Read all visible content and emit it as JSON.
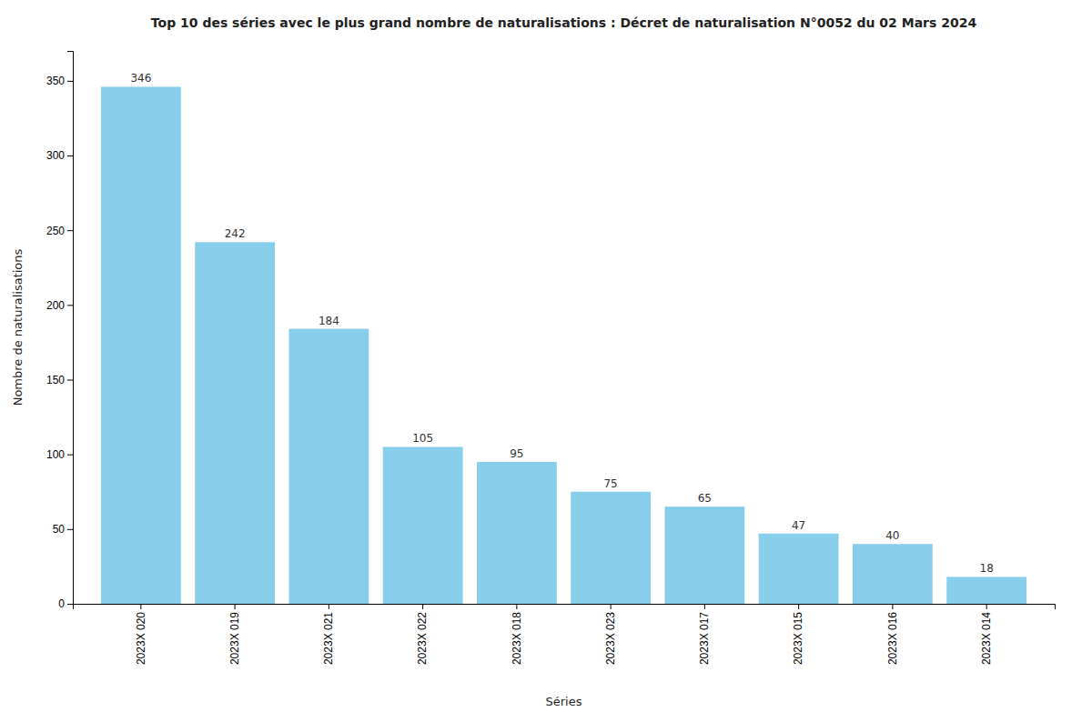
{
  "chart_data": {
    "type": "bar",
    "title": "Top 10 des séries avec le plus grand nombre de naturalisations : Décret de naturalisation N°0052 du 02 Mars 2024",
    "xlabel": "Séries",
    "ylabel": "Nombre de naturalisations",
    "categories": [
      "2023X 020",
      "2023X 019",
      "2023X 021",
      "2023X 022",
      "2023X 018",
      "2023X 023",
      "2023X 017",
      "2023X 015",
      "2023X 016",
      "2023X 014"
    ],
    "values": [
      346,
      242,
      184,
      105,
      95,
      75,
      65,
      47,
      40,
      18
    ],
    "color": "#87CEEB",
    "ylim": [
      0,
      370
    ],
    "yticks": [
      0,
      50,
      100,
      150,
      200,
      250,
      300,
      350
    ],
    "data_labels": true,
    "grid": false
  }
}
